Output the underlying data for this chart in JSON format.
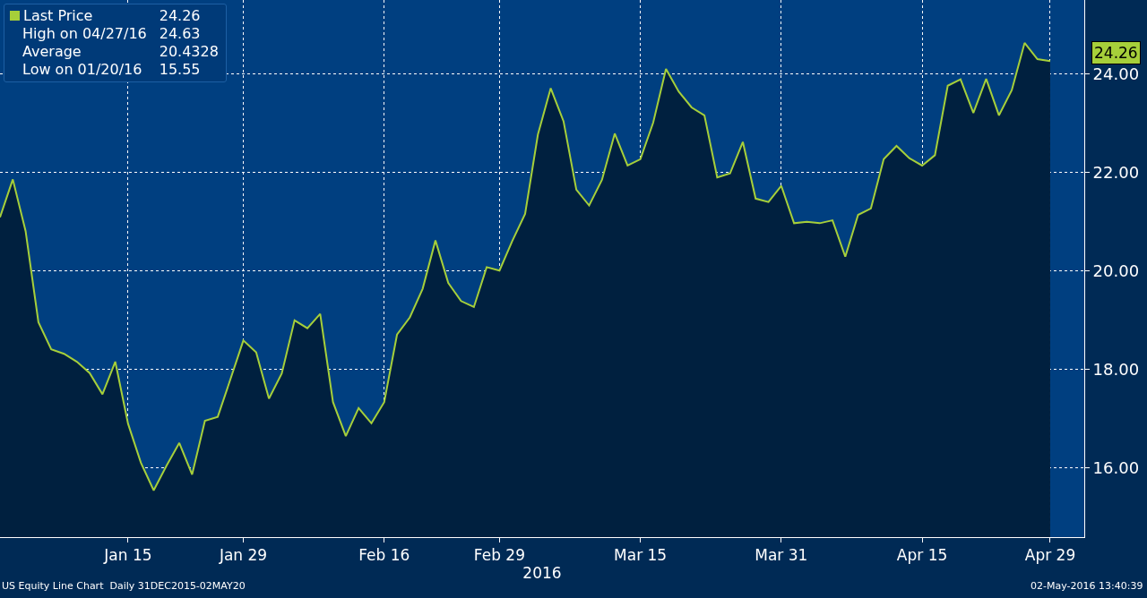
{
  "chart_data": {
    "type": "area",
    "xlabel": "2016",
    "categories": [
      null,
      null,
      null,
      null,
      null,
      null,
      null,
      null,
      null,
      null,
      "Jan 15",
      null,
      null,
      null,
      null,
      null,
      null,
      null,
      null,
      "Jan 29",
      null,
      null,
      null,
      null,
      null,
      null,
      null,
      null,
      null,
      null,
      "Feb 16",
      null,
      null,
      null,
      null,
      null,
      null,
      null,
      null,
      "Feb 29",
      null,
      null,
      null,
      null,
      null,
      null,
      null,
      null,
      null,
      null,
      "Mar 15",
      null,
      null,
      null,
      null,
      null,
      null,
      null,
      null,
      null,
      null,
      "Mar 31",
      null,
      null,
      null,
      null,
      null,
      null,
      null,
      null,
      null,
      null,
      "Apr 15",
      null,
      null,
      null,
      null,
      null,
      null,
      null,
      null,
      null,
      "Apr 29"
    ],
    "series": [
      {
        "color": "#00203f",
        "values": [
          21.09,
          21.86,
          20.81,
          18.96,
          18.41,
          18.32,
          18.16,
          17.93,
          17.5,
          18.16,
          16.9,
          16.11,
          15.55,
          16.05,
          16.51,
          15.87,
          16.96,
          17.04,
          17.81,
          18.59,
          18.35,
          17.41,
          17.92,
          19.0,
          18.84,
          19.13,
          17.34,
          16.65,
          17.22,
          16.91,
          17.34,
          18.71,
          19.06,
          19.64,
          20.62,
          19.76,
          19.39,
          19.27,
          20.08,
          20.01,
          20.61,
          21.16,
          22.77,
          23.71,
          23.04,
          21.65,
          21.33,
          21.85,
          22.79,
          22.14,
          22.27,
          23.01,
          24.1,
          23.64,
          23.32,
          23.16,
          21.9,
          21.98,
          22.62,
          21.47,
          21.4,
          21.73,
          20.97,
          21.0,
          20.97,
          21.03,
          20.29,
          21.14,
          21.27,
          22.27,
          22.54,
          22.29,
          22.14,
          22.35,
          23.76,
          23.89,
          23.21,
          23.9,
          23.16,
          23.67,
          24.63,
          24.3,
          24.26
        ]
      },
      {
        "type": "line",
        "name": "Last Price",
        "color": "#a6cf3a",
        "values": [
          21.09,
          21.86,
          20.81,
          18.96,
          18.41,
          18.32,
          18.16,
          17.93,
          17.5,
          18.16,
          16.9,
          16.11,
          15.55,
          16.05,
          16.51,
          15.87,
          16.96,
          17.04,
          17.81,
          18.59,
          18.35,
          17.41,
          17.92,
          19.0,
          18.84,
          19.13,
          17.34,
          16.65,
          17.22,
          16.91,
          17.34,
          18.71,
          19.06,
          19.64,
          20.62,
          19.76,
          19.39,
          19.27,
          20.08,
          20.01,
          20.61,
          21.16,
          22.77,
          23.71,
          23.04,
          21.65,
          21.33,
          21.85,
          22.79,
          22.14,
          22.27,
          23.01,
          24.1,
          23.64,
          23.32,
          23.16,
          21.9,
          21.98,
          22.62,
          21.47,
          21.4,
          21.73,
          20.97,
          21.0,
          20.97,
          21.03,
          20.29,
          21.14,
          21.27,
          22.27,
          22.54,
          22.29,
          22.14,
          22.35,
          23.76,
          23.89,
          23.21,
          23.9,
          23.16,
          23.67,
          24.63,
          24.3,
          24.26
        ]
      }
    ],
    "ylim": [
      14.6,
      25.5
    ],
    "yticks": [
      {
        "value": 16,
        "label": "16.00"
      },
      {
        "value": 18,
        "label": "18.00"
      },
      {
        "value": 20,
        "label": "20.00"
      },
      {
        "value": 22,
        "label": "22.00"
      },
      {
        "value": 24,
        "label": "24.00"
      }
    ],
    "grid": true,
    "legend": "top left",
    "annotations": [
      {
        "text": "24.26",
        "x": "Apr 29",
        "y": 24.26
      },
      "24.26",
      "High on 04/27/16",
      "24.63",
      "Average",
      "20.4328",
      "Low on 01/20/16",
      "15.55",
      "US Equity Line Chart  Daily 31DEC2015-02MAY20",
      "02-May-2016 13:40:39"
    ]
  }
}
